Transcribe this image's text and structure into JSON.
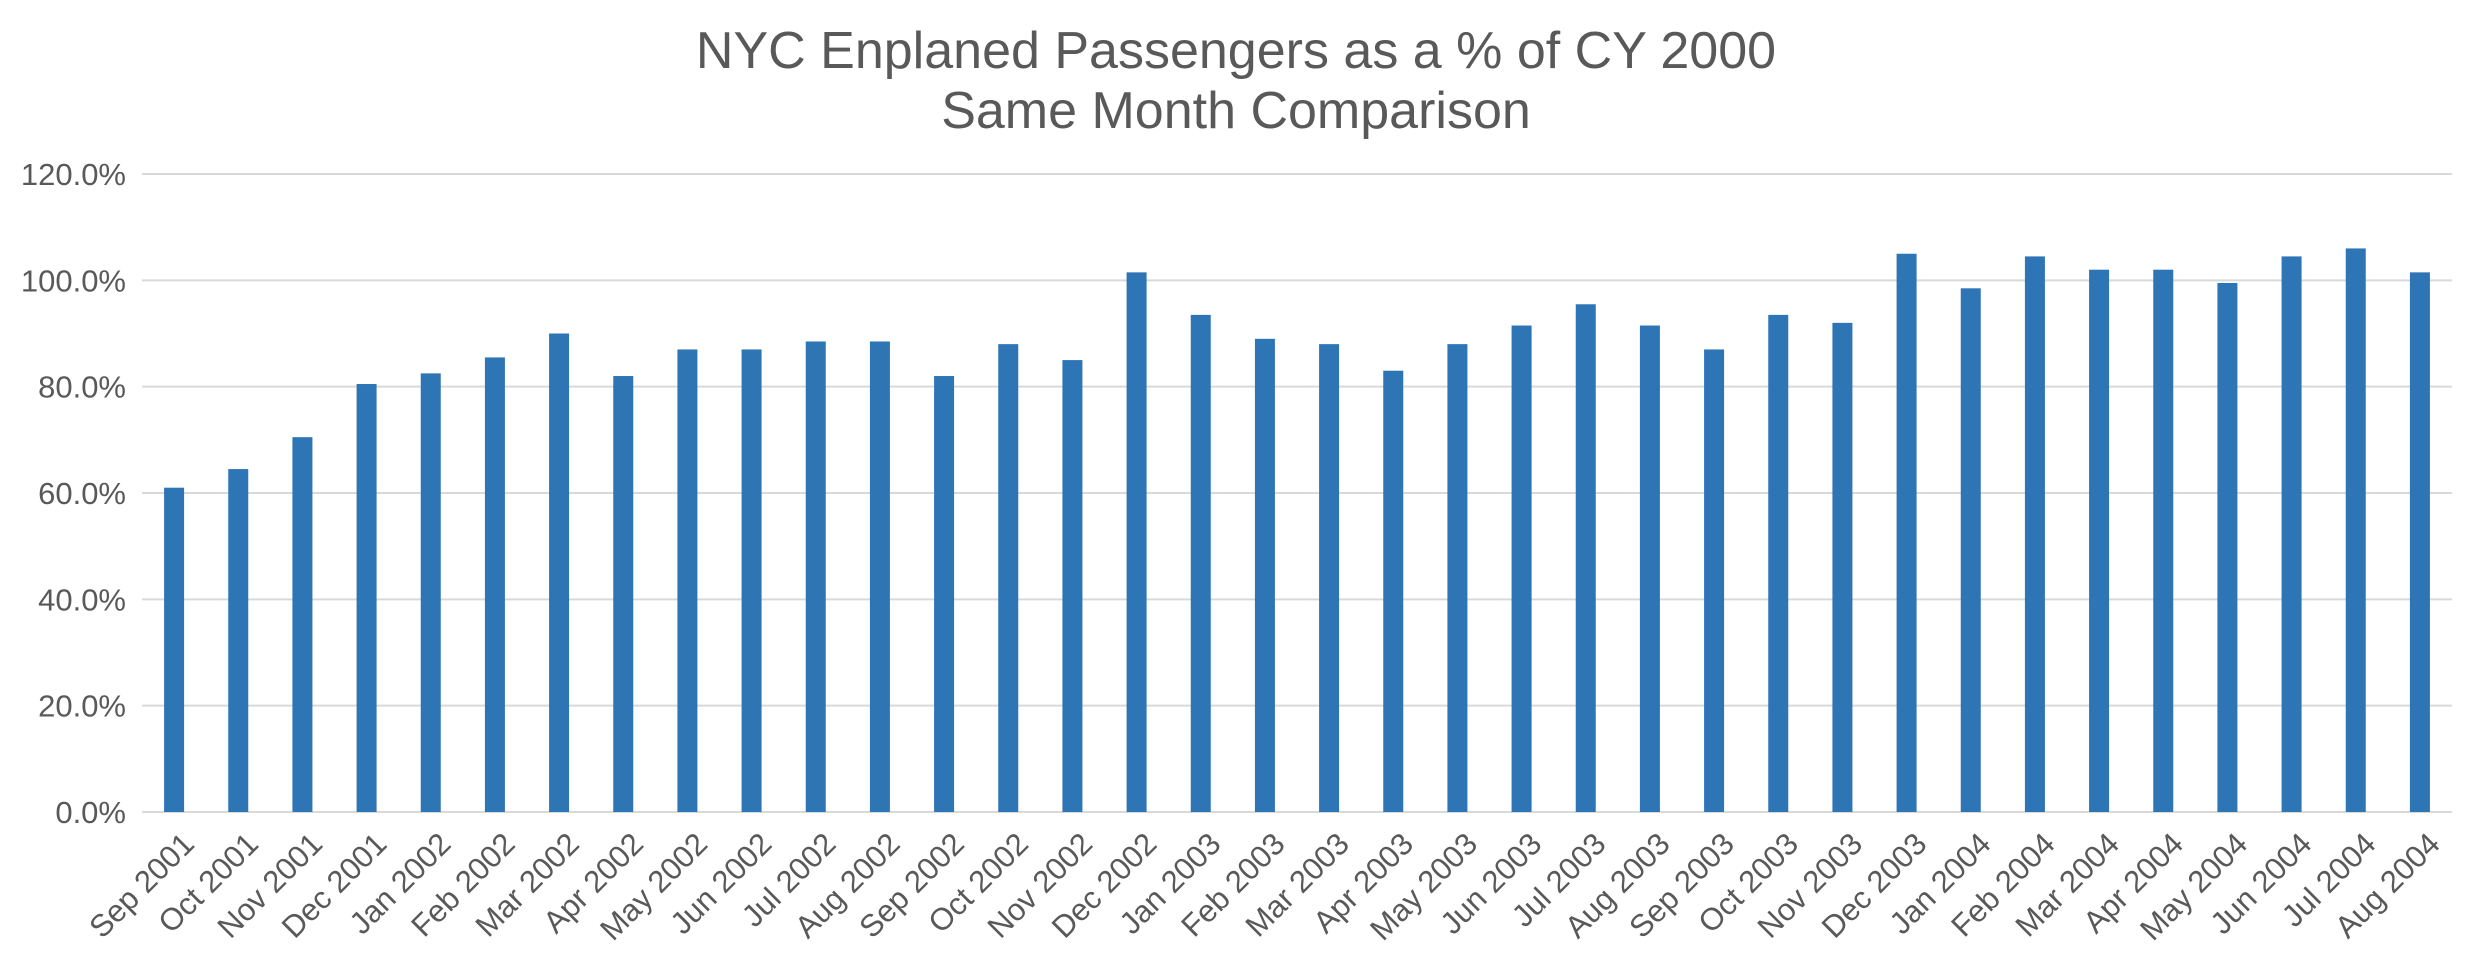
{
  "chart_data": {
    "type": "bar",
    "title": "NYC Enplaned Passengers as a % of CY 2000",
    "subtitle": "Same Month Comparison",
    "xlabel": "",
    "ylabel": "",
    "ylim": [
      0,
      120
    ],
    "y_ticks": [
      0,
      20,
      40,
      60,
      80,
      100,
      120
    ],
    "y_tick_labels": [
      "0.0%",
      "20.0%",
      "40.0%",
      "60.0%",
      "80.0%",
      "100.0%",
      "120.0%"
    ],
    "grid": true,
    "legend": "none",
    "bar_color": "#2e75b6",
    "categories": [
      "Sep 2001",
      "Oct 2001",
      "Nov 2001",
      "Dec 2001",
      "Jan 2002",
      "Feb 2002",
      "Mar 2002",
      "Apr 2002",
      "May 2002",
      "Jun 2002",
      "Jul 2002",
      "Aug 2002",
      "Sep 2002",
      "Oct 2002",
      "Nov 2002",
      "Dec 2002",
      "Jan 2003",
      "Feb 2003",
      "Mar 2003",
      "Apr 2003",
      "May 2003",
      "Jun 2003",
      "Jul 2003",
      "Aug 2003",
      "Sep 2003",
      "Oct 2003",
      "Nov 2003",
      "Dec 2003",
      "Jan 2004",
      "Feb 2004",
      "Mar 2004",
      "Apr 2004",
      "May 2004",
      "Jun 2004",
      "Jul 2004",
      "Aug 2004"
    ],
    "values": [
      61.0,
      64.5,
      70.5,
      80.5,
      82.5,
      85.5,
      90.0,
      82.0,
      87.0,
      87.0,
      88.5,
      88.5,
      82.0,
      88.0,
      85.0,
      101.5,
      93.5,
      89.0,
      88.0,
      83.0,
      88.0,
      91.5,
      95.5,
      91.5,
      87.0,
      93.5,
      92.0,
      105.0,
      98.5,
      104.5,
      102.0,
      102.0,
      99.5,
      104.5,
      106.0,
      101.5
    ]
  }
}
